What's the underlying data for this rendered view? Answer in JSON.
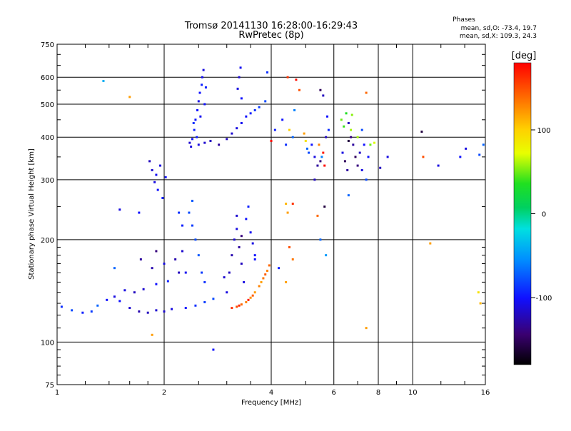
{
  "chart_data": {
    "type": "scatter",
    "title": "Tromsø 20141130 16:28:00-16:29:43",
    "subtitle": "RwPretec (8p)",
    "xlabel": "Frequency [MHz]",
    "ylabel": "Stationary phase Virtual Height [km]",
    "x_scale": "log",
    "y_scale": "log",
    "xlim": [
      1,
      16
    ],
    "ylim": [
      75,
      750
    ],
    "grid": true,
    "x_ticks": [
      1,
      2,
      4,
      6,
      8,
      10,
      16
    ],
    "x_tick_labels": [
      "1",
      "2",
      "4",
      "6",
      "8",
      "10",
      "16"
    ],
    "y_ticks": [
      75,
      100,
      200,
      300,
      400,
      500,
      600,
      750
    ],
    "y_tick_labels": [
      "75",
      "100",
      "200",
      "300",
      "400",
      "500",
      "600",
      "750"
    ],
    "stats": {
      "heading": "Phases",
      "o_line": "mean, sd,O: -73.4, 19.7",
      "x_line": "mean, sd,X: 109.3, 24.3"
    },
    "colorbar": {
      "label": "[deg]",
      "range": [
        -180,
        180
      ],
      "ticks": [
        100,
        0,
        -100
      ],
      "tick_labels": [
        "100",
        "0",
        "-100"
      ]
    },
    "series": [
      {
        "points": [
          [
            1.03,
            127,
            -90
          ],
          [
            1.1,
            124,
            -80
          ],
          [
            1.18,
            122,
            -95
          ],
          [
            1.25,
            123,
            -85
          ],
          [
            1.3,
            128,
            -70
          ],
          [
            1.38,
            133,
            -100
          ],
          [
            1.45,
            136,
            -110
          ],
          [
            1.5,
            132,
            -100
          ],
          [
            1.6,
            126,
            -115
          ],
          [
            1.7,
            123,
            -125
          ],
          [
            1.8,
            122,
            -120
          ],
          [
            1.9,
            124,
            -115
          ],
          [
            2.0,
            123,
            -115
          ],
          [
            2.1,
            125,
            -110
          ],
          [
            2.3,
            126,
            -100
          ],
          [
            2.45,
            128,
            -90
          ],
          [
            2.6,
            131,
            -85
          ],
          [
            2.75,
            134,
            -80
          ],
          [
            1.55,
            142,
            -110
          ],
          [
            1.65,
            140,
            -120
          ],
          [
            1.75,
            143,
            -115
          ],
          [
            1.9,
            148,
            -100
          ],
          [
            2.05,
            151,
            -95
          ],
          [
            2.2,
            160,
            -120
          ],
          [
            1.72,
            175,
            -130
          ],
          [
            1.85,
            165,
            -125
          ],
          [
            1.9,
            185,
            -140
          ],
          [
            2.0,
            170,
            -110
          ],
          [
            2.15,
            175,
            -125
          ],
          [
            2.25,
            185,
            -115
          ],
          [
            2.3,
            160,
            -105
          ],
          [
            1.82,
            340,
            -120
          ],
          [
            1.85,
            320,
            -115
          ],
          [
            1.9,
            310,
            -105
          ],
          [
            1.95,
            330,
            -110
          ],
          [
            1.92,
            280,
            -100
          ],
          [
            1.98,
            265,
            -95
          ],
          [
            1.88,
            295,
            -110
          ],
          [
            2.02,
            305,
            -100
          ],
          [
            2.2,
            240,
            -90
          ],
          [
            2.25,
            220,
            -95
          ],
          [
            2.38,
            375,
            -110
          ],
          [
            2.4,
            395,
            -100
          ],
          [
            2.43,
            420,
            -95
          ],
          [
            2.45,
            450,
            -100
          ],
          [
            2.48,
            480,
            -100
          ],
          [
            2.5,
            510,
            -110
          ],
          [
            2.52,
            540,
            -100
          ],
          [
            2.55,
            570,
            -95
          ],
          [
            2.56,
            600,
            -105
          ],
          [
            2.58,
            630,
            -110
          ],
          [
            2.42,
            440,
            -90
          ],
          [
            2.47,
            400,
            -95
          ],
          [
            2.53,
            460,
            -105
          ],
          [
            2.6,
            500,
            -100
          ],
          [
            2.62,
            560,
            -95
          ],
          [
            2.36,
            385,
            -115
          ],
          [
            2.5,
            380,
            -110
          ],
          [
            2.6,
            385,
            -115
          ],
          [
            2.7,
            390,
            -120
          ],
          [
            2.35,
            240,
            -80
          ],
          [
            2.4,
            220,
            -85
          ],
          [
            2.45,
            200,
            -80
          ],
          [
            2.5,
            180,
            -75
          ],
          [
            2.55,
            160,
            -85
          ],
          [
            2.6,
            150,
            -90
          ],
          [
            2.4,
            260,
            -75
          ],
          [
            2.85,
            380,
            -130
          ],
          [
            3.0,
            395,
            -120
          ],
          [
            3.1,
            410,
            -115
          ],
          [
            3.2,
            425,
            -110
          ],
          [
            3.3,
            440,
            -105
          ],
          [
            3.4,
            460,
            -100
          ],
          [
            3.5,
            470,
            -95
          ],
          [
            3.6,
            480,
            -90
          ],
          [
            3.7,
            490,
            -85
          ],
          [
            3.85,
            510,
            -80
          ],
          [
            3.9,
            620,
            -90
          ],
          [
            3.22,
            555,
            -110
          ],
          [
            3.25,
            600,
            -115
          ],
          [
            3.28,
            640,
            -105
          ],
          [
            3.3,
            520,
            -100
          ],
          [
            3.0,
            140,
            -110
          ],
          [
            3.05,
            160,
            -120
          ],
          [
            3.1,
            180,
            -125
          ],
          [
            3.15,
            200,
            -115
          ],
          [
            3.2,
            215,
            -110
          ],
          [
            3.25,
            190,
            -130
          ],
          [
            3.3,
            170,
            -120
          ],
          [
            3.35,
            150,
            -110
          ],
          [
            3.4,
            230,
            -100
          ],
          [
            3.45,
            250,
            -95
          ],
          [
            3.5,
            210,
            -105
          ],
          [
            3.55,
            195,
            -110
          ],
          [
            3.6,
            175,
            -100
          ],
          [
            3.2,
            235,
            -115
          ],
          [
            2.95,
            155,
            -115
          ],
          [
            3.3,
            205,
            -140
          ],
          [
            3.1,
            126,
            160
          ],
          [
            3.2,
            127,
            150
          ],
          [
            3.3,
            129,
            140
          ],
          [
            3.4,
            131,
            130
          ],
          [
            3.5,
            135,
            125
          ],
          [
            3.6,
            140,
            120
          ],
          [
            3.7,
            146,
            130
          ],
          [
            3.8,
            154,
            135
          ],
          [
            3.9,
            162,
            130
          ],
          [
            3.45,
            133,
            170
          ],
          [
            3.55,
            137,
            145
          ],
          [
            3.75,
            150,
            120
          ],
          [
            3.85,
            158,
            145
          ],
          [
            3.95,
            168,
            140
          ],
          [
            3.25,
            128,
            165
          ],
          [
            4.0,
            390,
            175
          ],
          [
            4.1,
            420,
            -95
          ],
          [
            4.3,
            450,
            -100
          ],
          [
            4.4,
            380,
            -90
          ],
          [
            4.45,
            600,
            160
          ],
          [
            4.5,
            420,
            100
          ],
          [
            4.6,
            400,
            -70
          ],
          [
            4.65,
            480,
            -60
          ],
          [
            4.7,
            590,
            175
          ],
          [
            4.8,
            550,
            150
          ],
          [
            4.4,
            150,
            120
          ],
          [
            4.5,
            190,
            150
          ],
          [
            4.45,
            240,
            120
          ],
          [
            4.4,
            255,
            110
          ],
          [
            4.6,
            255,
            160
          ],
          [
            4.6,
            175,
            135
          ],
          [
            4.95,
            410,
            120
          ],
          [
            5.0,
            390,
            90
          ],
          [
            5.05,
            370,
            -70
          ],
          [
            5.1,
            360,
            -80
          ],
          [
            5.2,
            380,
            -100
          ],
          [
            5.3,
            350,
            -110
          ],
          [
            5.4,
            330,
            -130
          ],
          [
            5.5,
            340,
            -140
          ],
          [
            5.6,
            360,
            170
          ],
          [
            5.65,
            330,
            175
          ],
          [
            5.7,
            400,
            -120
          ],
          [
            5.75,
            460,
            -100
          ],
          [
            5.8,
            420,
            -90
          ],
          [
            5.3,
            300,
            -120
          ],
          [
            5.45,
            380,
            130
          ],
          [
            5.55,
            350,
            -60
          ],
          [
            5.5,
            550,
            -150
          ],
          [
            5.6,
            530,
            -120
          ],
          [
            5.65,
            250,
            -160
          ],
          [
            5.5,
            200,
            -70
          ],
          [
            5.7,
            180,
            -50
          ],
          [
            5.4,
            235,
            140
          ],
          [
            6.3,
            450,
            50
          ],
          [
            6.4,
            430,
            40
          ],
          [
            6.5,
            470,
            35
          ],
          [
            6.6,
            440,
            -120
          ],
          [
            6.7,
            400,
            -140
          ],
          [
            6.8,
            380,
            -130
          ],
          [
            6.9,
            350,
            -150
          ],
          [
            7.0,
            330,
            -140
          ],
          [
            7.1,
            360,
            -120
          ],
          [
            7.2,
            320,
            -110
          ],
          [
            7.3,
            380,
            -100
          ],
          [
            7.4,
            300,
            -80
          ],
          [
            6.35,
            360,
            -110
          ],
          [
            6.45,
            340,
            -150
          ],
          [
            6.55,
            320,
            -130
          ],
          [
            6.6,
            390,
            -160
          ],
          [
            6.75,
            465,
            55
          ],
          [
            6.7,
            420,
            60
          ],
          [
            6.6,
            270,
            -70
          ],
          [
            7.5,
            350,
            -100
          ],
          [
            7.0,
            400,
            60
          ],
          [
            7.2,
            420,
            -80
          ],
          [
            7.6,
            380,
            50
          ],
          [
            7.8,
            385,
            70
          ],
          [
            8.1,
            325,
            -120
          ],
          [
            8.5,
            350,
            -110
          ],
          [
            7.4,
            540,
            140
          ],
          [
            7.4,
            110,
            120
          ],
          [
            10.6,
            415,
            -160
          ],
          [
            10.7,
            350,
            150
          ],
          [
            11.2,
            195,
            120
          ],
          [
            11.8,
            330,
            -110
          ],
          [
            13.6,
            350,
            -100
          ],
          [
            14.1,
            370,
            -110
          ],
          [
            15.4,
            355,
            -80
          ],
          [
            15.8,
            380,
            -70
          ],
          [
            15.3,
            140,
            90
          ],
          [
            15.5,
            130,
            110
          ],
          [
            1.35,
            585,
            -40
          ],
          [
            1.6,
            525,
            120
          ],
          [
            1.5,
            245,
            -110
          ],
          [
            1.7,
            240,
            -100
          ],
          [
            2.75,
            95,
            -100
          ],
          [
            1.85,
            105,
            120
          ],
          [
            1.45,
            165,
            -70
          ],
          [
            3.6,
            180,
            -100
          ],
          [
            4.2,
            165,
            -95
          ]
        ]
      }
    ]
  }
}
